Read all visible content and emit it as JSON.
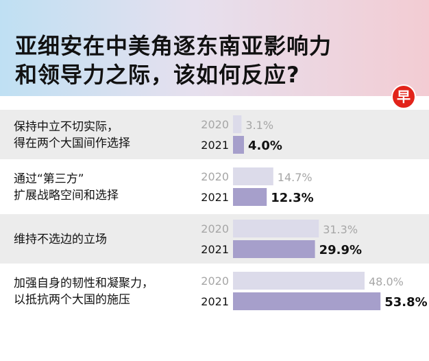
{
  "header": {
    "title_line1": "亚细安在中美角逐东南亚影响力",
    "title_line2": "和领导力之际，该如何反应?"
  },
  "logo": {
    "glyph": "早",
    "icon": "zaobao-logo-icon",
    "color": "#e2231a"
  },
  "colors": {
    "bar_2020": "#dcdbea",
    "bar_2021": "#a69fcb",
    "row_shaded": "#ececec",
    "row_plain": "#ffffff",
    "text_2020": "#a6a6a6",
    "text_2021": "#111111"
  },
  "chart_data": {
    "type": "bar",
    "orientation": "horizontal",
    "categories": [
      [
        "保持中立不切实际，",
        "得在两个大国间作选择"
      ],
      [
        "通过“第三方”",
        "扩展战略空间和选择"
      ],
      [
        "维持不选边的立场"
      ],
      [
        "加强自身的韧性和凝聚力，",
        "以抵抗两个大国的施压"
      ]
    ],
    "series": [
      {
        "name": "2020",
        "values": [
          3.1,
          14.7,
          31.3,
          48.0
        ],
        "labels": [
          "3.1%",
          "14.7%",
          "31.3%",
          "48.0%"
        ]
      },
      {
        "name": "2021",
        "values": [
          4.0,
          12.3,
          29.9,
          53.8
        ],
        "labels": [
          "4.0%",
          "12.3%",
          "29.9%",
          "53.8%"
        ]
      }
    ],
    "xlim": [
      0,
      60
    ],
    "grid": false,
    "legend": "none"
  }
}
